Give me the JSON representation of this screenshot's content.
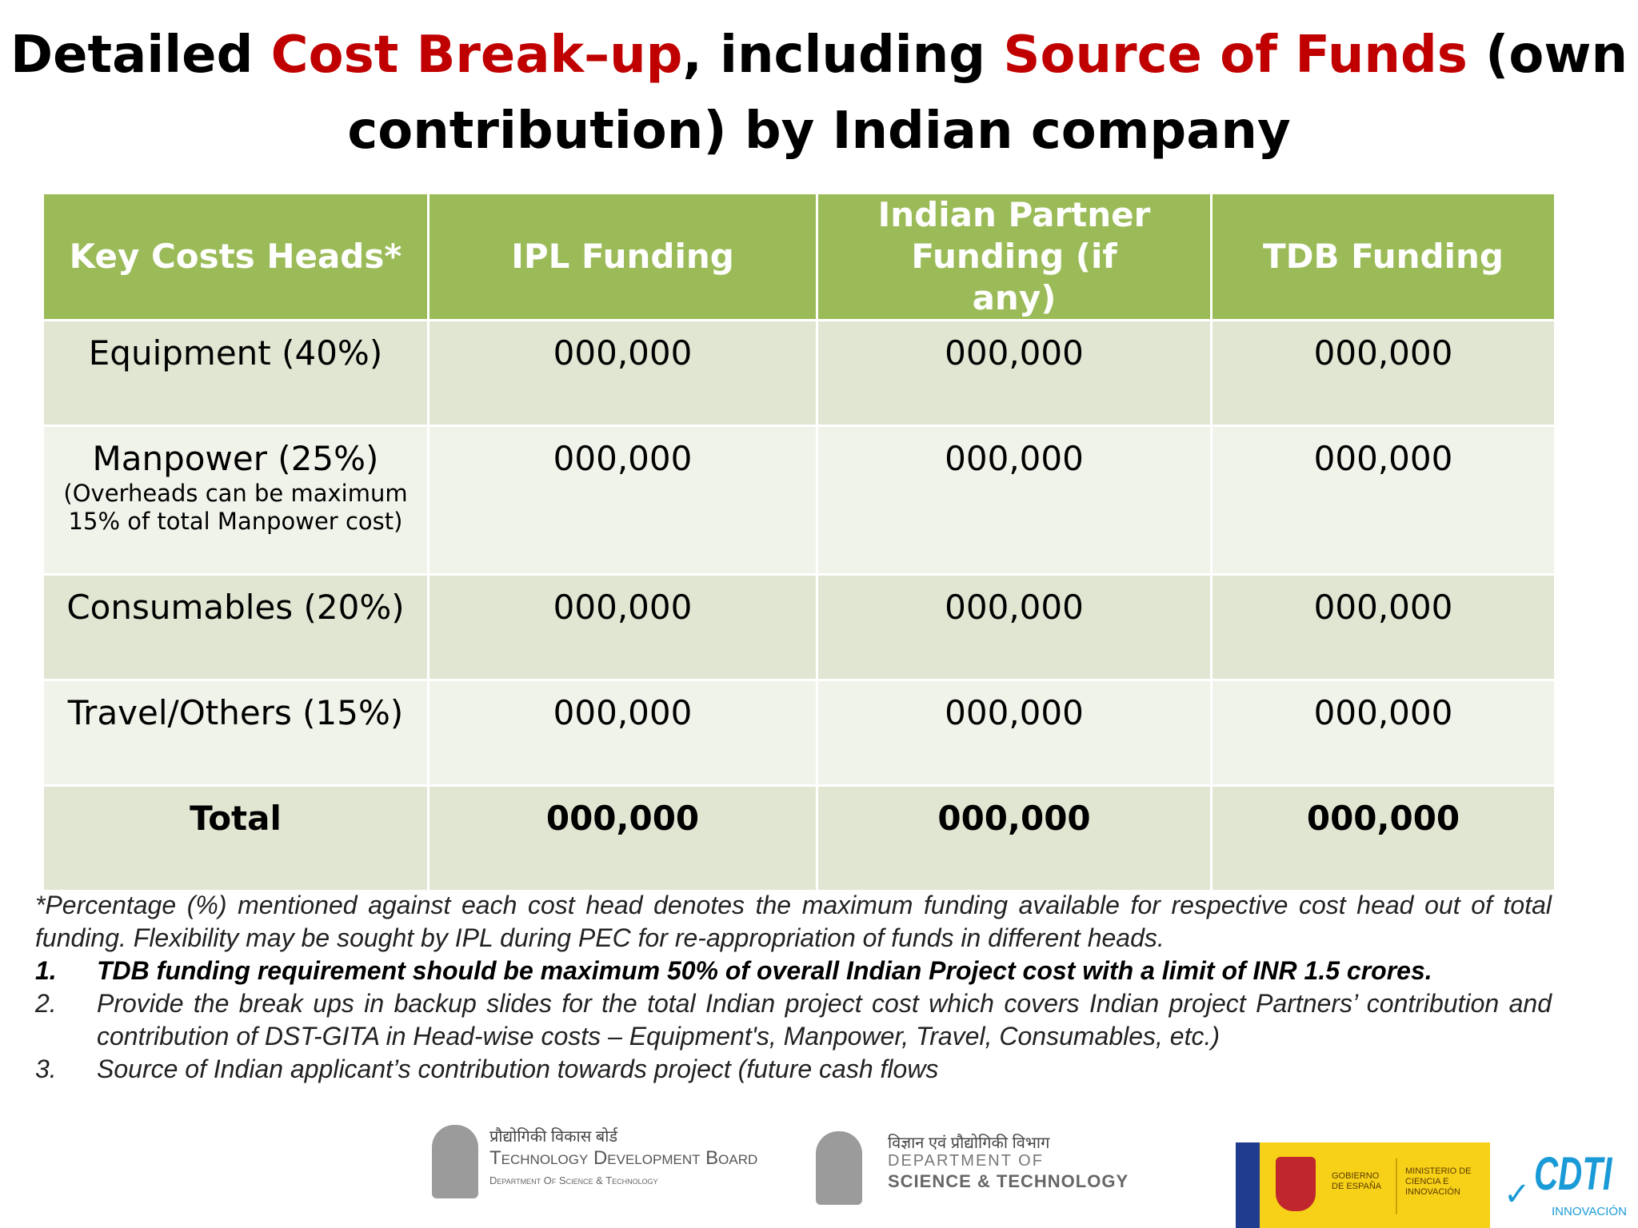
{
  "title": {
    "part1": "Detailed ",
    "part2": "Cost Break–up",
    "part3": ", including  ",
    "part4": "Source of Funds",
    "part5": " (own",
    "line2": "contribution) by Indian company"
  },
  "table": {
    "headers": [
      "Key Costs Heads*",
      "IPL Funding",
      "Indian Partner Funding (if any)",
      "TDB Funding"
    ],
    "rows": [
      {
        "head": "Equipment (40%)",
        "note": "",
        "ipl": "000,000",
        "partner": "000,000",
        "tdb": "000,000"
      },
      {
        "head": "Manpower (25%)",
        "note": "(Overheads can be maximum 15% of total Manpower cost)",
        "ipl": "000,000",
        "partner": "000,000",
        "tdb": "000,000"
      },
      {
        "head": "Consumables (20%)",
        "note": "",
        "ipl": "000,000",
        "partner": "000,000",
        "tdb": "000,000"
      },
      {
        "head": "Travel/Others (15%)",
        "note": "",
        "ipl": "000,000",
        "partner": "000,000",
        "tdb": "000,000"
      },
      {
        "head": "Total",
        "note": "",
        "ipl": "000,000",
        "partner": "000,000",
        "tdb": "000,000"
      }
    ]
  },
  "notes": {
    "intro": "*Percentage (%) mentioned against each cost head denotes the maximum funding available for respective cost head out of total funding. Flexibility may be sought by IPL during PEC for re-appropriation of funds in different heads.",
    "items": [
      {
        "num": "1.",
        "text": "TDB funding requirement should be maximum 50% of overall Indian Project cost with a limit of INR 1.5 crores."
      },
      {
        "num": "2.",
        "text": "Provide the break ups in backup slides  for the total Indian project cost which covers Indian project Partners’ contribution and contribution of DST-GITA in Head-wise costs – Equipment's, Manpower, Travel, Consumables, etc.)"
      },
      {
        "num": "3.",
        "text": "Source of Indian applicant’s contribution towards project (future cash flows"
      }
    ]
  },
  "logos": {
    "tdb": {
      "hindi": "प्रौद्योगिकी विकास बोर्ड",
      "name": "Technology Development Board",
      "dept": "Department Of Science & Technology"
    },
    "dst": {
      "hindi": "विज्ञान एवं प्रौद्योगिकी विभाग",
      "line1": "DEPARTMENT OF",
      "line2": "SCIENCE & TECHNOLOGY"
    },
    "spain": {
      "col1": "GOBIERNO DE ESPAÑA",
      "col2": "MINISTERIO DE CIENCIA E INNOVACIÓN"
    },
    "cdti": {
      "name": "CDTI",
      "sub": "INNOVACIÓN"
    }
  },
  "colors": {
    "header_green": "#9bbb59",
    "title_red": "#c00000"
  }
}
